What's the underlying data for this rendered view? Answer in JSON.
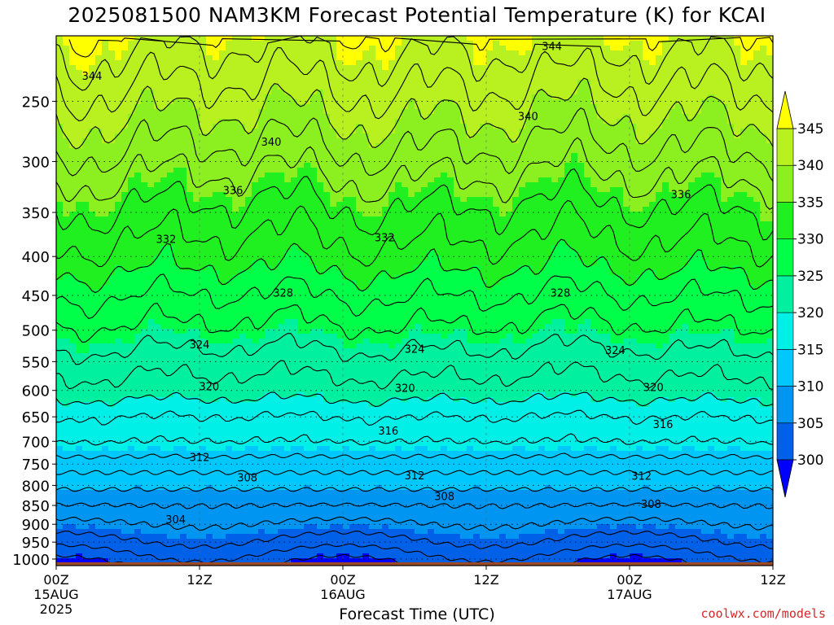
{
  "title": "2025081500 NAM3KM Forecast Potential Temperature (K) for KCAI",
  "x_axis_label": "Forecast Time (UTC)",
  "credit": "coolwx.com/models",
  "colors": {
    "ground": "#9c4a25",
    "band_colors": [
      "#0000ff",
      "#0060e8",
      "#0095f0",
      "#00c8ff",
      "#00f0e8",
      "#00f0a0",
      "#00ff48",
      "#20f020",
      "#8cf020",
      "#b8f020",
      "#ffff00"
    ]
  },
  "chart_data": {
    "type": "heatmap",
    "title": "2025081500 NAM3KM Forecast Potential Temperature (K) for KCAI",
    "xlabel": "Forecast Time (UTC)",
    "ylabel": "",
    "y_scale": "log",
    "y_reversed": true,
    "ylim": [
      1020,
      205
    ],
    "y_ticks": [
      250,
      300,
      350,
      400,
      450,
      500,
      550,
      600,
      650,
      700,
      750,
      800,
      850,
      900,
      950,
      1000
    ],
    "x_ticks": [
      {
        "hour": 0,
        "label": "00Z",
        "sub1": "15AUG",
        "sub2": "2025"
      },
      {
        "hour": 12,
        "label": "12Z",
        "sub1": "",
        "sub2": ""
      },
      {
        "hour": 24,
        "label": "00Z",
        "sub1": "16AUG",
        "sub2": ""
      },
      {
        "hour": 36,
        "label": "12Z",
        "sub1": "",
        "sub2": ""
      },
      {
        "hour": 48,
        "label": "00Z",
        "sub1": "17AUG",
        "sub2": ""
      },
      {
        "hour": 60,
        "label": "12Z",
        "sub1": "",
        "sub2": ""
      }
    ],
    "xlim": [
      0,
      60
    ],
    "colorbar_levels": [
      300,
      305,
      310,
      315,
      320,
      325,
      330,
      335,
      340,
      345
    ],
    "colorbar_labels": [
      "300",
      "305",
      "310",
      "315",
      "320",
      "325",
      "330",
      "335",
      "340",
      "345"
    ],
    "contour_interval": 2,
    "contour_labels": [
      {
        "value": 344,
        "hour": 3.0,
        "pressure": 232
      },
      {
        "value": 344,
        "hour": 41.5,
        "pressure": 212
      },
      {
        "value": 340,
        "hour": 18.0,
        "pressure": 283
      },
      {
        "value": 340,
        "hour": 39.5,
        "pressure": 262
      },
      {
        "value": 336,
        "hour": 14.8,
        "pressure": 328
      },
      {
        "value": 336,
        "hour": 52.3,
        "pressure": 332
      },
      {
        "value": 332,
        "hour": 9.2,
        "pressure": 380
      },
      {
        "value": 332,
        "hour": 27.5,
        "pressure": 378
      },
      {
        "value": 328,
        "hour": 19.0,
        "pressure": 447
      },
      {
        "value": 328,
        "hour": 42.2,
        "pressure": 447
      },
      {
        "value": 324,
        "hour": 12.0,
        "pressure": 523
      },
      {
        "value": 324,
        "hour": 30.0,
        "pressure": 530
      },
      {
        "value": 324,
        "hour": 46.8,
        "pressure": 532
      },
      {
        "value": 320,
        "hour": 12.8,
        "pressure": 594
      },
      {
        "value": 320,
        "hour": 29.2,
        "pressure": 597
      },
      {
        "value": 320,
        "hour": 50.0,
        "pressure": 595
      },
      {
        "value": 316,
        "hour": 27.8,
        "pressure": 679
      },
      {
        "value": 316,
        "hour": 50.8,
        "pressure": 666
      },
      {
        "value": 312,
        "hour": 12.0,
        "pressure": 736
      },
      {
        "value": 312,
        "hour": 30.0,
        "pressure": 778
      },
      {
        "value": 312,
        "hour": 49.0,
        "pressure": 779
      },
      {
        "value": 308,
        "hour": 16.0,
        "pressure": 783
      },
      {
        "value": 308,
        "hour": 32.5,
        "pressure": 828
      },
      {
        "value": 308,
        "hour": 49.8,
        "pressure": 848
      },
      {
        "value": 304,
        "hour": 10.0,
        "pressure": 888
      }
    ],
    "theta_profile": {
      "pressure": [
        1000,
        950,
        900,
        850,
        800,
        750,
        700,
        650,
        600,
        550,
        500,
        450,
        400,
        350,
        300,
        250,
        210
      ],
      "theta": [
        301.5,
        304,
        306,
        308,
        310.5,
        313,
        316,
        318,
        321,
        323,
        325.5,
        328,
        331,
        333.5,
        337,
        341,
        344.5
      ]
    },
    "surface_pressure": 1010
  }
}
